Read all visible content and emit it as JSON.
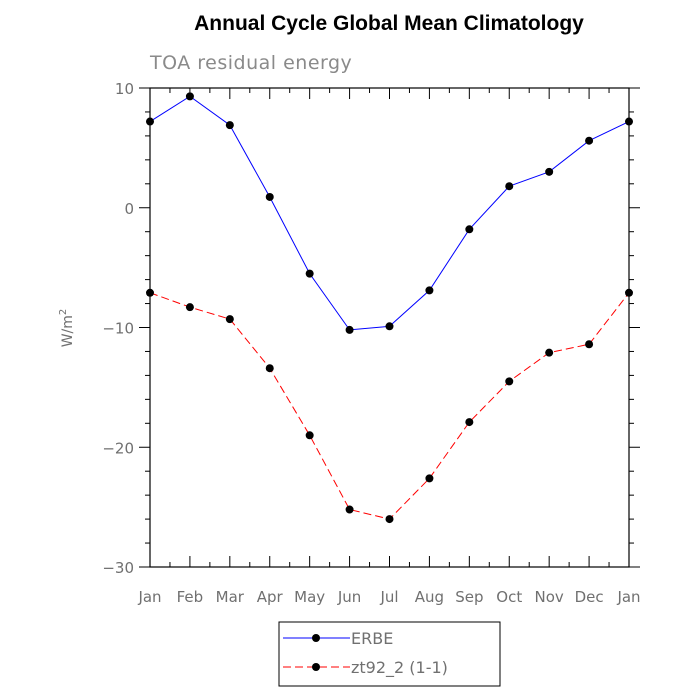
{
  "chart_data": {
    "type": "line",
    "title": "Annual Cycle Global Mean Climatology",
    "subtitle": "TOA residual energy",
    "xlabel": "",
    "ylabel": "W/m",
    "ylabel_superscript": "2",
    "categories": [
      "Jan",
      "Feb",
      "Mar",
      "Apr",
      "May",
      "Jun",
      "Jul",
      "Aug",
      "Sep",
      "Oct",
      "Nov",
      "Dec",
      "Jan"
    ],
    "ylim": [
      -30,
      10
    ],
    "yticks": [
      10,
      0,
      -10,
      -20,
      -30
    ],
    "grid": false,
    "legend_position": "bottom-center",
    "series": [
      {
        "name": "ERBE",
        "color": "#0000ff",
        "dash": "solid",
        "marker": "circle",
        "values": [
          7.2,
          9.3,
          6.9,
          0.9,
          -5.5,
          -10.2,
          -9.9,
          -6.9,
          -1.8,
          1.8,
          3.0,
          5.6,
          7.2
        ]
      },
      {
        "name": "zt92_2 (1-1)",
        "color": "#ff0000",
        "dash": "dashed",
        "marker": "circle",
        "values": [
          -7.1,
          -8.3,
          -9.3,
          -13.4,
          -19.0,
          -25.2,
          -26.0,
          -22.6,
          -17.9,
          -14.5,
          -12.1,
          -11.4,
          -7.1
        ]
      }
    ]
  }
}
